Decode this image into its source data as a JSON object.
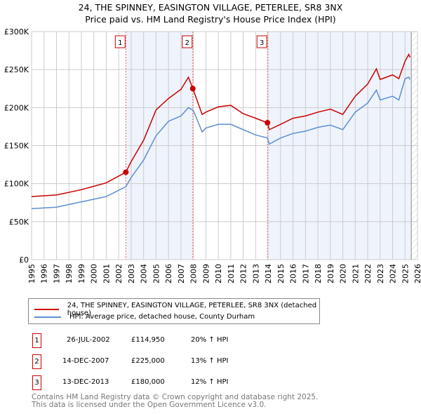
{
  "chart_data": {
    "type": "line",
    "title": "24, THE SPINNEY, EASINGTON VILLAGE, PETERLEE, SR8 3NX",
    "subtitle": "Price paid vs. HM Land Registry's House Price Index (HPI)",
    "xlim": [
      1995,
      2026
    ],
    "ylim": [
      0,
      300000
    ],
    "x_ticks": [
      "1995",
      "1996",
      "1997",
      "1998",
      "1999",
      "2000",
      "2001",
      "2002",
      "2003",
      "2004",
      "2005",
      "2006",
      "2007",
      "2008",
      "2009",
      "2010",
      "2011",
      "2012",
      "2013",
      "2014",
      "2015",
      "2016",
      "2017",
      "2018",
      "2019",
      "2020",
      "2021",
      "2022",
      "2023",
      "2024",
      "2025",
      "2026"
    ],
    "y_ticks": [
      {
        "v": 0,
        "label": "£0"
      },
      {
        "v": 50000,
        "label": "£50K"
      },
      {
        "v": 100000,
        "label": "£100K"
      },
      {
        "v": 150000,
        "label": "£150K"
      },
      {
        "v": 200000,
        "label": "£200K"
      },
      {
        "v": 250000,
        "label": "£250K"
      },
      {
        "v": 300000,
        "label": "£300K"
      }
    ],
    "grid": true,
    "series": [
      {
        "name": "24, THE SPINNEY, EASINGTON VILLAGE, PETERLEE, SR8 3NX (detached house)",
        "color": "#cc0000",
        "x": [
          1995,
          1997,
          1999,
          2001,
          2002.57,
          2003,
          2004,
          2005,
          2006,
          2007,
          2007.6,
          2008,
          2008.7,
          2009,
          2010,
          2011,
          2012,
          2013,
          2013.95,
          2014.1,
          2015,
          2016,
          2017,
          2018,
          2019,
          2020,
          2021,
          2022,
          2022.7,
          2023,
          2024,
          2024.5,
          2025,
          2025.3,
          2025.4
        ],
        "y": [
          83000,
          85000,
          92000,
          101000,
          114950,
          129000,
          157000,
          197000,
          212000,
          224000,
          240000,
          223000,
          191000,
          194000,
          201000,
          203000,
          192000,
          186000,
          180000,
          171000,
          178000,
          186000,
          189000,
          194000,
          198000,
          191000,
          215000,
          231000,
          251000,
          237000,
          243000,
          238000,
          261000,
          270000,
          266000
        ]
      },
      {
        "name": "HPI: Average price, detached house, County Durham",
        "color": "#5b8fd0",
        "x": [
          1995,
          1997,
          1999,
          2001,
          2002.57,
          2003,
          2004,
          2005,
          2006,
          2007,
          2007.6,
          2008,
          2008.7,
          2009,
          2010,
          2011,
          2012,
          2013,
          2013.95,
          2014.1,
          2015,
          2016,
          2017,
          2018,
          2019,
          2020,
          2021,
          2022,
          2022.7,
          2023,
          2024,
          2024.5,
          2025,
          2025.3,
          2025.4
        ],
        "y": [
          67000,
          69000,
          76000,
          83000,
          96000,
          108000,
          131000,
          163000,
          182000,
          189000,
          200000,
          196000,
          168000,
          173000,
          178000,
          178000,
          171000,
          164000,
          160000,
          152000,
          160000,
          166000,
          169000,
          174000,
          177000,
          171000,
          194000,
          206000,
          223000,
          210000,
          215000,
          210000,
          238000,
          240000,
          237000
        ]
      }
    ],
    "sales": [
      {
        "label": "1",
        "x": 2002.57,
        "price": 114950
      },
      {
        "label": "2",
        "x": 2007.95,
        "price": 225000
      },
      {
        "label": "3",
        "x": 2013.95,
        "price": 180000
      }
    ],
    "data_end": 2025.5
  },
  "legend": {
    "red": "24, THE SPINNEY, EASINGTON VILLAGE, PETERLEE, SR8 3NX (detached house)",
    "blue": "HPI: Average price, detached house, County Durham"
  },
  "transactions": [
    {
      "num": "1",
      "date": "26-JUL-2002",
      "price": "£114,950",
      "hpi": "20% ↑ HPI"
    },
    {
      "num": "2",
      "date": "14-DEC-2007",
      "price": "£225,000",
      "hpi": "13% ↑ HPI"
    },
    {
      "num": "3",
      "date": "13-DEC-2013",
      "price": "£180,000",
      "hpi": "12% ↑ HPI"
    }
  ],
  "footer": {
    "line1": "Contains HM Land Registry data © Crown copyright and database right 2025.",
    "line2": "This data is licensed under the Open Government Licence v3.0."
  }
}
